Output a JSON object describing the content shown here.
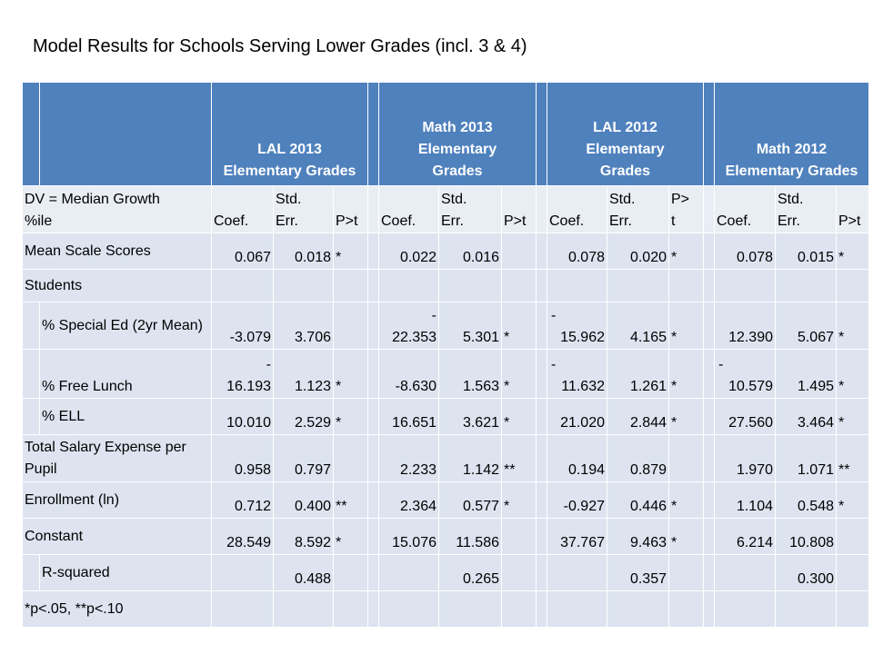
{
  "title": "Model Results for Schools Serving Lower Grades (incl. 3 & 4)",
  "groups": [
    {
      "line1": "LAL 2013",
      "line2": "Elementary Grades"
    },
    {
      "line1": "Math 2013",
      "line2": "Elementary",
      "line3": "Grades"
    },
    {
      "line1": "LAL 2012",
      "line2": "Elementary",
      "line3": "Grades"
    },
    {
      "line1": "Math 2012",
      "line2": "Elementary Grades"
    }
  ],
  "subheader": {
    "dv_line1": "DV = Median Growth",
    "dv_line2": "%ile",
    "coef": "Coef.",
    "stderr_line1": "Std.",
    "stderr_line2": "Err.",
    "pt": "P>t",
    "pt_split_1": "P>",
    "pt_split_2": "t"
  },
  "rows": {
    "mean_scale": {
      "label": "Mean Scale Scores",
      "c1": "0.067",
      "e1": "0.018",
      "s1": "*",
      "c2": "0.022",
      "e2": "0.016",
      "s2": "",
      "c3": "0.078",
      "e3": "0.020",
      "s3": "*",
      "c4": "0.078",
      "e4": "0.015",
      "s4": "*"
    },
    "students": {
      "label": "Students"
    },
    "special_ed": {
      "label": "% Special Ed (2yr Mean)",
      "c1": "-3.079",
      "e1": "3.706",
      "s1": "",
      "c2_top": "-",
      "c2": "22.353",
      "e2": "5.301",
      "s2": "*",
      "c3_top": "-",
      "c3": "15.962",
      "e3": "4.165",
      "s3": "*",
      "c4": "12.390",
      "e4": "5.067",
      "s4": "*"
    },
    "free_lunch": {
      "label": "% Free Lunch",
      "c1_top": "-",
      "c1": "16.193",
      "e1": "1.123",
      "s1": "*",
      "c2": "-8.630",
      "e2": "1.563",
      "s2": "*",
      "c3_top": "-",
      "c3": "11.632",
      "e3": "1.261",
      "s3": "*",
      "c4_top": "-",
      "c4": "10.579",
      "e4": "1.495",
      "s4": "*"
    },
    "ell": {
      "label": "% ELL",
      "c1": "10.010",
      "e1": "2.529",
      "s1": "*",
      "c2": "16.651",
      "e2": "3.621",
      "s2": "*",
      "c3": "21.020",
      "e3": "2.844",
      "s3": "*",
      "c4": "27.560",
      "e4": "3.464",
      "s4": "*"
    },
    "salary": {
      "label": "Total Salary Expense per Pupil",
      "c1": "0.958",
      "e1": "0.797",
      "s1": "",
      "c2": "2.233",
      "e2": "1.142",
      "s2": "**",
      "c3": "0.194",
      "e3": "0.879",
      "s3": "",
      "c4": "1.970",
      "e4": "1.071",
      "s4": "**"
    },
    "enrollment": {
      "label": "Enrollment (ln)",
      "c1": "0.712",
      "e1": "0.400",
      "s1": "**",
      "c2": "2.364",
      "e2": "0.577",
      "s2": "*",
      "c3": "-0.927",
      "e3": "0.446",
      "s3": "*",
      "c4": "1.104",
      "e4": "0.548",
      "s4": "*"
    },
    "constant": {
      "label": "Constant",
      "c1": "28.549",
      "e1": "8.592",
      "s1": "*",
      "c2": "15.076",
      "e2": "11.586",
      "s2": "",
      "c3": "37.767",
      "e3": "9.463",
      "s3": "*",
      "c4": "6.214",
      "e4": "10.808",
      "s4": ""
    },
    "rsq": {
      "label": "R-squared",
      "e1": "0.488",
      "e2": "0.265",
      "e3": "0.357",
      "e4": "0.300"
    }
  },
  "footnote": "*p<.05, **p<.10"
}
